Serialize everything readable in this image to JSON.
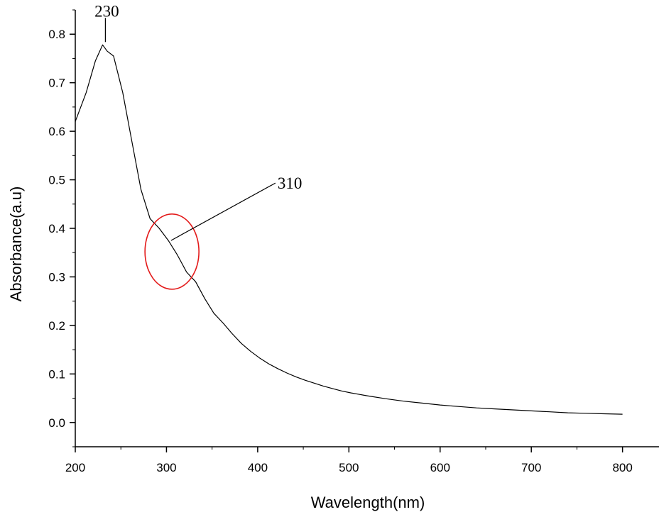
{
  "chart_data": {
    "type": "line",
    "title": "",
    "xlabel": "Wavelength(nm)",
    "ylabel": "Absorbance(a.u)",
    "xlim": [
      200,
      840
    ],
    "ylim": [
      -0.05,
      0.85
    ],
    "x_ticks": [
      "200",
      "300",
      "400",
      "500",
      "600",
      "700",
      "800"
    ],
    "y_ticks": [
      "0.0",
      "0.1",
      "0.2",
      "0.3",
      "0.4",
      "0.5",
      "0.6",
      "0.7",
      "0.8"
    ],
    "grid": false,
    "legend": "none",
    "series": [
      {
        "color": "#000000",
        "x": [
          200,
          212,
          222,
          230,
          235,
          242,
          252,
          262,
          272,
          282,
          292,
          302,
          312,
          322,
          332,
          342,
          352,
          362,
          372,
          382,
          392,
          402,
          412,
          422,
          432,
          442,
          452,
          462,
          472,
          482,
          492,
          502,
          520,
          540,
          560,
          580,
          600,
          620,
          640,
          660,
          680,
          700,
          720,
          740,
          760,
          780,
          800
        ],
        "y": [
          0.62,
          0.68,
          0.745,
          0.778,
          0.765,
          0.755,
          0.68,
          0.58,
          0.48,
          0.42,
          0.4,
          0.375,
          0.345,
          0.31,
          0.29,
          0.255,
          0.225,
          0.205,
          0.183,
          0.163,
          0.147,
          0.133,
          0.121,
          0.111,
          0.102,
          0.094,
          0.087,
          0.081,
          0.075,
          0.07,
          0.065,
          0.061,
          0.055,
          0.049,
          0.044,
          0.04,
          0.036,
          0.033,
          0.03,
          0.028,
          0.026,
          0.024,
          0.022,
          0.02,
          0.019,
          0.018,
          0.017
        ]
      }
    ],
    "annotations": [
      {
        "text": "230",
        "x": 233,
        "y": 0.778
      },
      {
        "text": "310",
        "x": 305,
        "y": 0.375
      }
    ],
    "highlight_circle": {
      "cx": 306,
      "cy": 0.352,
      "color": "#e31a1a"
    }
  }
}
